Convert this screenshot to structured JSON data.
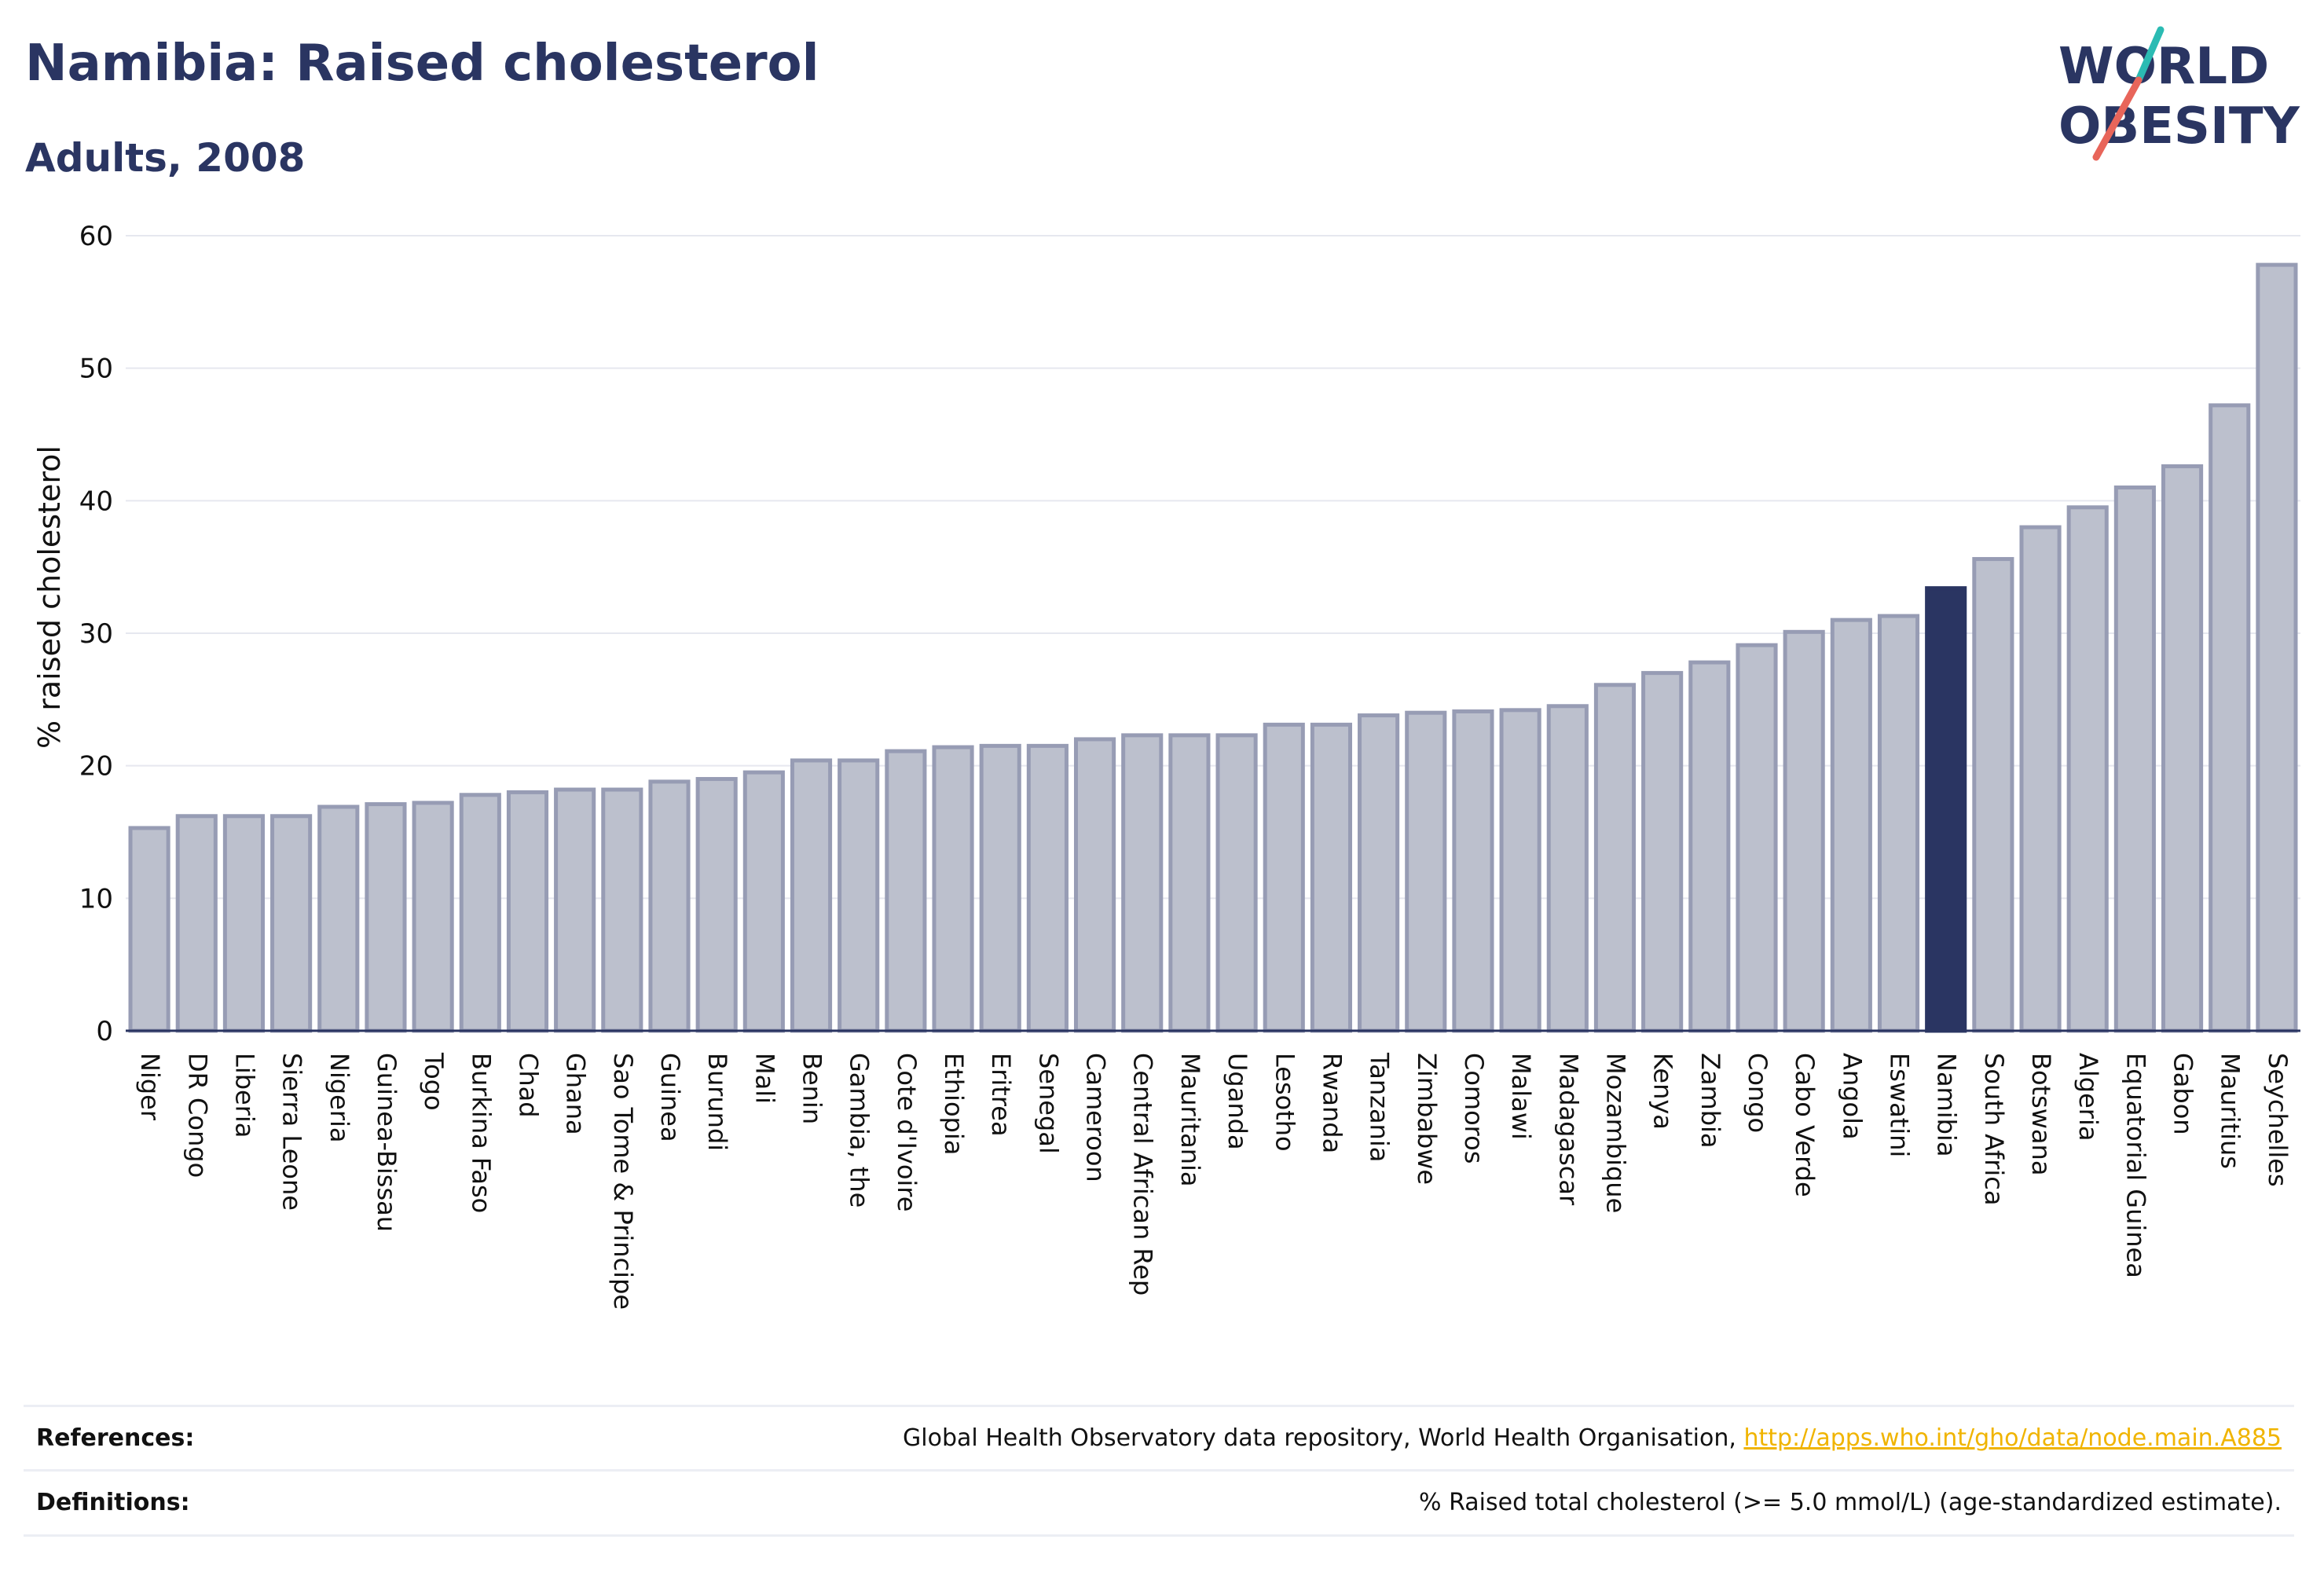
{
  "header": {
    "title": "Namibia: Raised cholesterol",
    "subtitle": "Adults, 2008",
    "logo": {
      "line1": "WORLD",
      "line2": "OBESITY"
    }
  },
  "colors": {
    "title": "#2a3562",
    "bar_default": "#bcc0cd",
    "bar_default_stroke": "#979cb4",
    "bar_highlight": "#2a3562",
    "logo_accent_teal": "#2bbbb3",
    "logo_accent_red": "#e8655a",
    "link": "#f0b400"
  },
  "chart_data": {
    "type": "bar",
    "title": "Namibia: Raised cholesterol",
    "subtitle": "Adults, 2008",
    "xlabel": "",
    "ylabel": "% raised cholesterol",
    "ylim": [
      0,
      60
    ],
    "yticks": [
      0,
      10,
      20,
      30,
      40,
      50,
      60
    ],
    "grid": true,
    "highlight": "Namibia",
    "categories": [
      "Niger",
      "DR Congo",
      "Liberia",
      "Sierra Leone",
      "Nigeria",
      "Guinea-Bissau",
      "Togo",
      "Burkina Faso",
      "Chad",
      "Ghana",
      "Sao Tome & Principe",
      "Guinea",
      "Burundi",
      "Mali",
      "Benin",
      "Gambia, the",
      "Cote d'Ivoire",
      "Ethiopia",
      "Eritrea",
      "Senegal",
      "Cameroon",
      "Central African Rep",
      "Mauritania",
      "Uganda",
      "Lesotho",
      "Rwanda",
      "Tanzania",
      "Zimbabwe",
      "Comoros",
      "Malawi",
      "Madagascar",
      "Mozambique",
      "Kenya",
      "Zambia",
      "Congo",
      "Cabo Verde",
      "Angola",
      "Eswatini",
      "Namibia",
      "South Africa",
      "Botswana",
      "Algeria",
      "Equatorial Guinea",
      "Gabon",
      "Mauritius",
      "Seychelles"
    ],
    "values": [
      15.3,
      16.2,
      16.2,
      16.2,
      16.9,
      17.1,
      17.2,
      17.8,
      18.0,
      18.2,
      18.2,
      18.8,
      19.0,
      19.5,
      20.4,
      20.4,
      21.1,
      21.4,
      21.5,
      21.5,
      22.0,
      22.3,
      22.3,
      22.3,
      23.1,
      23.1,
      23.8,
      24.0,
      24.1,
      24.2,
      24.5,
      26.1,
      27.0,
      27.8,
      29.1,
      30.1,
      31.0,
      31.3,
      33.4,
      35.6,
      38.0,
      39.5,
      41.0,
      42.6,
      47.2,
      57.8
    ]
  },
  "footer": {
    "references_label": "References:",
    "references_text": "Global Health Observatory data repository, World Health Organisation, ",
    "references_link": "http://apps.who.int/gho/data/node.main.A885",
    "definitions_label": "Definitions:",
    "definitions_text": "% Raised total cholesterol (>= 5.0 mmol/L) (age-standardized estimate)."
  }
}
